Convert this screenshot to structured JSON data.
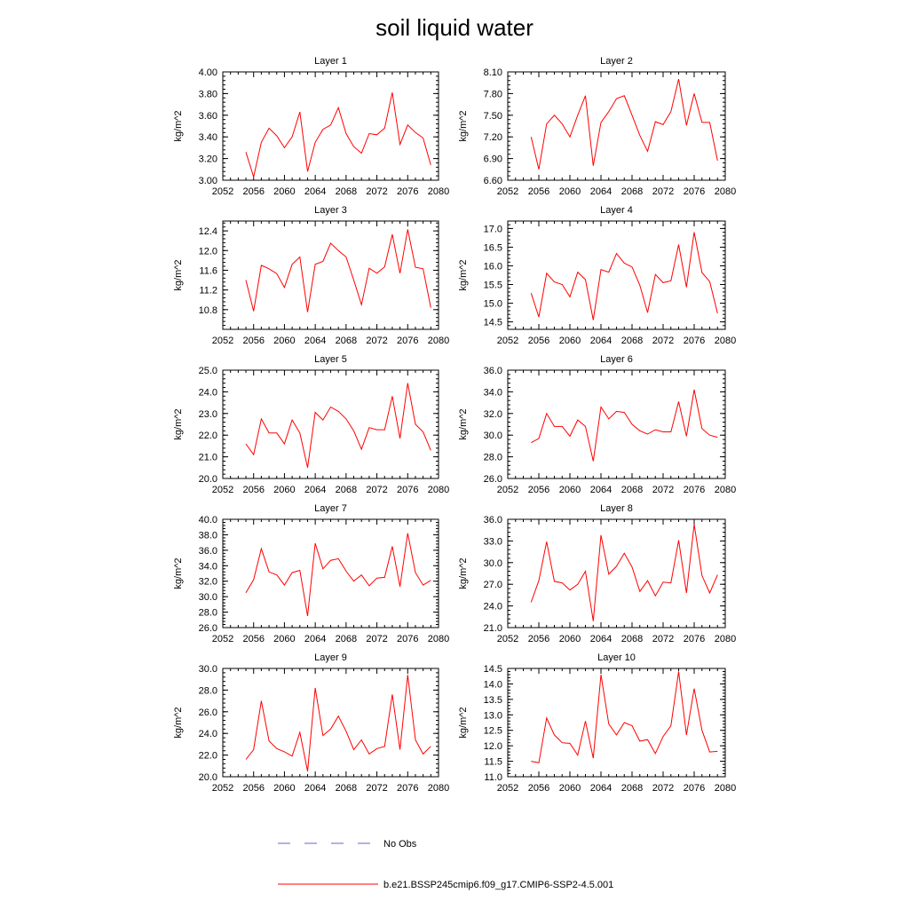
{
  "figure": {
    "title": "soil liquid water"
  },
  "legend": {
    "entries": [
      {
        "label": "No Obs",
        "style": "dashed",
        "color": "#6666cc"
      },
      {
        "label": "b.e21.BSSP245cmip6.f09_g17.CMIP6-SSP2-4.5.001",
        "style": "solid",
        "color": "#ff0000"
      }
    ]
  },
  "chart_data": [
    {
      "type": "line",
      "title": "Layer 1",
      "xlabel": "",
      "ylabel": "kg/m^2",
      "xlim": [
        2052,
        2080
      ],
      "ylim": [
        3.0,
        4.0
      ],
      "xticks": [
        2052,
        2056,
        2060,
        2064,
        2068,
        2072,
        2076,
        2080
      ],
      "yticks": [
        "3.00",
        "3.20",
        "3.40",
        "3.60",
        "3.80",
        "4.00"
      ],
      "color": "#ff0000",
      "series": [
        {
          "x": [
            2055,
            2056,
            2057,
            2058,
            2059,
            2060,
            2061,
            2062,
            2063,
            2064,
            2065,
            2066,
            2067,
            2068,
            2069,
            2070,
            2071,
            2072,
            2073,
            2074,
            2075,
            2076,
            2077,
            2078,
            2079
          ],
          "values": [
            3.26,
            3.03,
            3.35,
            3.48,
            3.41,
            3.3,
            3.4,
            3.63,
            3.08,
            3.35,
            3.47,
            3.51,
            3.67,
            3.43,
            3.31,
            3.25,
            3.43,
            3.42,
            3.48,
            3.81,
            3.33,
            3.51,
            3.44,
            3.39,
            3.14
          ]
        }
      ]
    },
    {
      "type": "line",
      "title": "Layer 2",
      "xlabel": "",
      "ylabel": "kg/m^2",
      "xlim": [
        2052,
        2080
      ],
      "ylim": [
        6.6,
        8.1
      ],
      "xticks": [
        2052,
        2056,
        2060,
        2064,
        2068,
        2072,
        2076,
        2080
      ],
      "yticks": [
        "6.60",
        "6.90",
        "7.20",
        "7.50",
        "7.80",
        "8.10"
      ],
      "color": "#ff0000",
      "series": [
        {
          "x": [
            2055,
            2056,
            2057,
            2058,
            2059,
            2060,
            2061,
            2062,
            2063,
            2064,
            2065,
            2066,
            2067,
            2068,
            2069,
            2070,
            2071,
            2072,
            2073,
            2074,
            2075,
            2076,
            2077,
            2078,
            2079
          ],
          "values": [
            7.2,
            6.75,
            7.38,
            7.5,
            7.38,
            7.2,
            7.5,
            7.77,
            6.8,
            7.4,
            7.55,
            7.73,
            7.77,
            7.5,
            7.22,
            7.0,
            7.41,
            7.37,
            7.55,
            8.0,
            7.36,
            7.8,
            7.4,
            7.4,
            6.87
          ]
        }
      ]
    },
    {
      "type": "line",
      "title": "Layer 3",
      "xlabel": "",
      "ylabel": "kg/m^2",
      "xlim": [
        2052,
        2080
      ],
      "ylim": [
        10.4,
        12.6
      ],
      "xticks": [
        2052,
        2056,
        2060,
        2064,
        2068,
        2072,
        2076,
        2080
      ],
      "yticks": [
        "10.8",
        "11.2",
        "11.6",
        "12.0",
        "12.4"
      ],
      "color": "#ff0000",
      "series": [
        {
          "x": [
            2055,
            2056,
            2057,
            2058,
            2059,
            2060,
            2061,
            2062,
            2063,
            2064,
            2065,
            2066,
            2067,
            2068,
            2069,
            2070,
            2071,
            2072,
            2073,
            2074,
            2075,
            2076,
            2077,
            2078,
            2079
          ],
          "values": [
            11.4,
            10.77,
            11.7,
            11.63,
            11.53,
            11.25,
            11.72,
            11.87,
            10.75,
            11.72,
            11.78,
            12.15,
            12.0,
            11.87,
            11.4,
            10.9,
            11.64,
            11.54,
            11.67,
            12.33,
            11.54,
            12.43,
            11.66,
            11.63,
            10.84
          ]
        }
      ]
    },
    {
      "type": "line",
      "title": "Layer 4",
      "xlabel": "",
      "ylabel": "kg/m^2",
      "xlim": [
        2052,
        2080
      ],
      "ylim": [
        14.3,
        17.2
      ],
      "xticks": [
        2052,
        2056,
        2060,
        2064,
        2068,
        2072,
        2076,
        2080
      ],
      "yticks": [
        "14.5",
        "15.0",
        "15.5",
        "16.0",
        "16.5",
        "17.0"
      ],
      "color": "#ff0000",
      "series": [
        {
          "x": [
            2055,
            2056,
            2057,
            2058,
            2059,
            2060,
            2061,
            2062,
            2063,
            2064,
            2065,
            2066,
            2067,
            2068,
            2069,
            2070,
            2071,
            2072,
            2073,
            2074,
            2075,
            2076,
            2077,
            2078,
            2079
          ],
          "values": [
            15.27,
            14.63,
            15.8,
            15.57,
            15.5,
            15.17,
            15.83,
            15.63,
            14.55,
            15.9,
            15.83,
            16.33,
            16.07,
            15.97,
            15.48,
            14.75,
            15.77,
            15.55,
            15.6,
            16.57,
            15.43,
            16.9,
            15.82,
            15.58,
            14.73
          ]
        }
      ]
    },
    {
      "type": "line",
      "title": "Layer 5",
      "xlabel": "",
      "ylabel": "kg/m^2",
      "xlim": [
        2052,
        2080
      ],
      "ylim": [
        20.0,
        25.0
      ],
      "xticks": [
        2052,
        2056,
        2060,
        2064,
        2068,
        2072,
        2076,
        2080
      ],
      "yticks": [
        "20.0",
        "21.0",
        "22.0",
        "23.0",
        "24.0",
        "25.0"
      ],
      "color": "#ff0000",
      "series": [
        {
          "x": [
            2055,
            2056,
            2057,
            2058,
            2059,
            2060,
            2061,
            2062,
            2063,
            2064,
            2065,
            2066,
            2067,
            2068,
            2069,
            2070,
            2071,
            2072,
            2073,
            2074,
            2075,
            2076,
            2077,
            2078,
            2079
          ],
          "values": [
            21.6,
            21.1,
            22.75,
            22.1,
            22.1,
            21.6,
            22.7,
            22.1,
            20.5,
            23.05,
            22.7,
            23.3,
            23.1,
            22.75,
            22.2,
            21.35,
            22.35,
            22.25,
            22.25,
            23.8,
            21.85,
            24.4,
            22.5,
            22.15,
            21.3
          ]
        }
      ]
    },
    {
      "type": "line",
      "title": "Layer 6",
      "xlabel": "",
      "ylabel": "kg/m^2",
      "xlim": [
        2052,
        2080
      ],
      "ylim": [
        26.0,
        36.0
      ],
      "xticks": [
        2052,
        2056,
        2060,
        2064,
        2068,
        2072,
        2076,
        2080
      ],
      "yticks": [
        "26.0",
        "28.0",
        "30.0",
        "32.0",
        "34.0",
        "36.0"
      ],
      "color": "#ff0000",
      "series": [
        {
          "x": [
            2055,
            2056,
            2057,
            2058,
            2059,
            2060,
            2061,
            2062,
            2063,
            2064,
            2065,
            2066,
            2067,
            2068,
            2069,
            2070,
            2071,
            2072,
            2073,
            2074,
            2075,
            2076,
            2077,
            2078,
            2079
          ],
          "values": [
            29.3,
            29.7,
            32.0,
            30.8,
            30.8,
            29.9,
            31.4,
            30.8,
            27.6,
            32.6,
            31.5,
            32.2,
            32.1,
            31.0,
            30.4,
            30.1,
            30.5,
            30.3,
            30.3,
            33.1,
            29.9,
            34.2,
            30.6,
            30.0,
            29.8
          ]
        }
      ]
    },
    {
      "type": "line",
      "title": "Layer 7",
      "xlabel": "",
      "ylabel": "kg/m^2",
      "xlim": [
        2052,
        2080
      ],
      "ylim": [
        26.0,
        40.0
      ],
      "xticks": [
        2052,
        2056,
        2060,
        2064,
        2068,
        2072,
        2076,
        2080
      ],
      "yticks": [
        "26.0",
        "28.0",
        "30.0",
        "32.0",
        "34.0",
        "36.0",
        "38.0",
        "40.0"
      ],
      "color": "#ff0000",
      "series": [
        {
          "x": [
            2055,
            2056,
            2057,
            2058,
            2059,
            2060,
            2061,
            2062,
            2063,
            2064,
            2065,
            2066,
            2067,
            2068,
            2069,
            2070,
            2071,
            2072,
            2073,
            2074,
            2075,
            2076,
            2077,
            2078,
            2079
          ],
          "values": [
            30.5,
            32.2,
            36.2,
            33.2,
            32.8,
            31.5,
            33.1,
            33.4,
            27.5,
            36.9,
            33.6,
            34.7,
            34.9,
            33.3,
            32.0,
            32.8,
            31.4,
            32.4,
            32.5,
            36.5,
            31.3,
            38.2,
            33.1,
            31.5,
            32.1
          ]
        }
      ]
    },
    {
      "type": "line",
      "title": "Layer 8",
      "xlabel": "",
      "ylabel": "kg/m^2",
      "xlim": [
        2052,
        2080
      ],
      "ylim": [
        21.0,
        36.0
      ],
      "xticks": [
        2052,
        2056,
        2060,
        2064,
        2068,
        2072,
        2076,
        2080
      ],
      "yticks": [
        "21.0",
        "24.0",
        "27.0",
        "30.0",
        "33.0",
        "36.0"
      ],
      "color": "#ff0000",
      "series": [
        {
          "x": [
            2055,
            2056,
            2057,
            2058,
            2059,
            2060,
            2061,
            2062,
            2063,
            2064,
            2065,
            2066,
            2067,
            2068,
            2069,
            2070,
            2071,
            2072,
            2073,
            2074,
            2075,
            2076,
            2077,
            2078,
            2079
          ],
          "values": [
            24.5,
            27.5,
            32.9,
            27.4,
            27.2,
            26.2,
            27.0,
            28.8,
            21.9,
            33.8,
            28.4,
            29.5,
            31.3,
            29.4,
            26.0,
            27.5,
            25.4,
            27.3,
            27.2,
            33.1,
            25.8,
            35.3,
            28.2,
            25.8,
            28.3
          ]
        }
      ]
    },
    {
      "type": "line",
      "title": "Layer 9",
      "xlabel": "",
      "ylabel": "kg/m^2",
      "xlim": [
        2052,
        2080
      ],
      "ylim": [
        20.0,
        30.0
      ],
      "xticks": [
        2052,
        2056,
        2060,
        2064,
        2068,
        2072,
        2076,
        2080
      ],
      "yticks": [
        "20.0",
        "22.0",
        "24.0",
        "26.0",
        "28.0",
        "30.0"
      ],
      "color": "#ff0000",
      "series": [
        {
          "x": [
            2055,
            2056,
            2057,
            2058,
            2059,
            2060,
            2061,
            2062,
            2063,
            2064,
            2065,
            2066,
            2067,
            2068,
            2069,
            2070,
            2071,
            2072,
            2073,
            2074,
            2075,
            2076,
            2077,
            2078,
            2079
          ],
          "values": [
            21.6,
            22.5,
            27.0,
            23.3,
            22.6,
            22.3,
            21.9,
            24.1,
            20.5,
            28.2,
            23.8,
            24.4,
            25.6,
            24.2,
            22.5,
            23.4,
            22.1,
            22.6,
            22.8,
            27.6,
            22.5,
            29.4,
            23.4,
            22.1,
            22.8
          ]
        }
      ]
    },
    {
      "type": "line",
      "title": "Layer 10",
      "xlabel": "",
      "ylabel": "kg/m^2",
      "xlim": [
        2052,
        2080
      ],
      "ylim": [
        11.0,
        14.5
      ],
      "xticks": [
        2052,
        2056,
        2060,
        2064,
        2068,
        2072,
        2076,
        2080
      ],
      "yticks": [
        "11.0",
        "11.5",
        "12.0",
        "12.5",
        "13.0",
        "13.5",
        "14.0",
        "14.5"
      ],
      "color": "#ff0000",
      "series": [
        {
          "x": [
            2055,
            2056,
            2057,
            2058,
            2059,
            2060,
            2061,
            2062,
            2063,
            2064,
            2065,
            2066,
            2067,
            2068,
            2069,
            2070,
            2071,
            2072,
            2073,
            2074,
            2075,
            2076,
            2077,
            2078,
            2079
          ],
          "values": [
            11.5,
            11.45,
            12.9,
            12.35,
            12.1,
            12.08,
            11.7,
            12.8,
            11.6,
            14.3,
            12.7,
            12.35,
            12.75,
            12.65,
            12.15,
            12.2,
            11.75,
            12.3,
            12.65,
            14.4,
            12.35,
            13.85,
            12.5,
            11.8,
            11.82
          ]
        }
      ]
    }
  ]
}
